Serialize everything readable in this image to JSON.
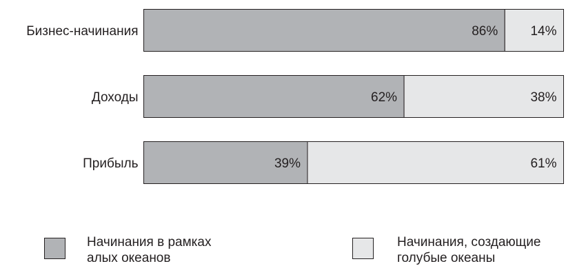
{
  "chart_data": {
    "type": "bar",
    "orientation": "horizontal",
    "stacked": true,
    "categories": [
      "Бизнес-начинания",
      "Доходы",
      "Прибыль"
    ],
    "series": [
      {
        "name": "Начинания в рамках\nалых океанов",
        "values": [
          86,
          62,
          39
        ],
        "labels": [
          "86%",
          "62%",
          "39%"
        ],
        "color": "#b1b3b6"
      },
      {
        "name": "Начинания, создающие\nголубые океаны",
        "values": [
          14,
          38,
          61
        ],
        "labels": [
          "14%",
          "38%",
          "61%"
        ],
        "color": "#e6e7e8"
      }
    ],
    "xlim": [
      0,
      100
    ],
    "unit": "%",
    "grid": false,
    "legend_position": "bottom"
  }
}
